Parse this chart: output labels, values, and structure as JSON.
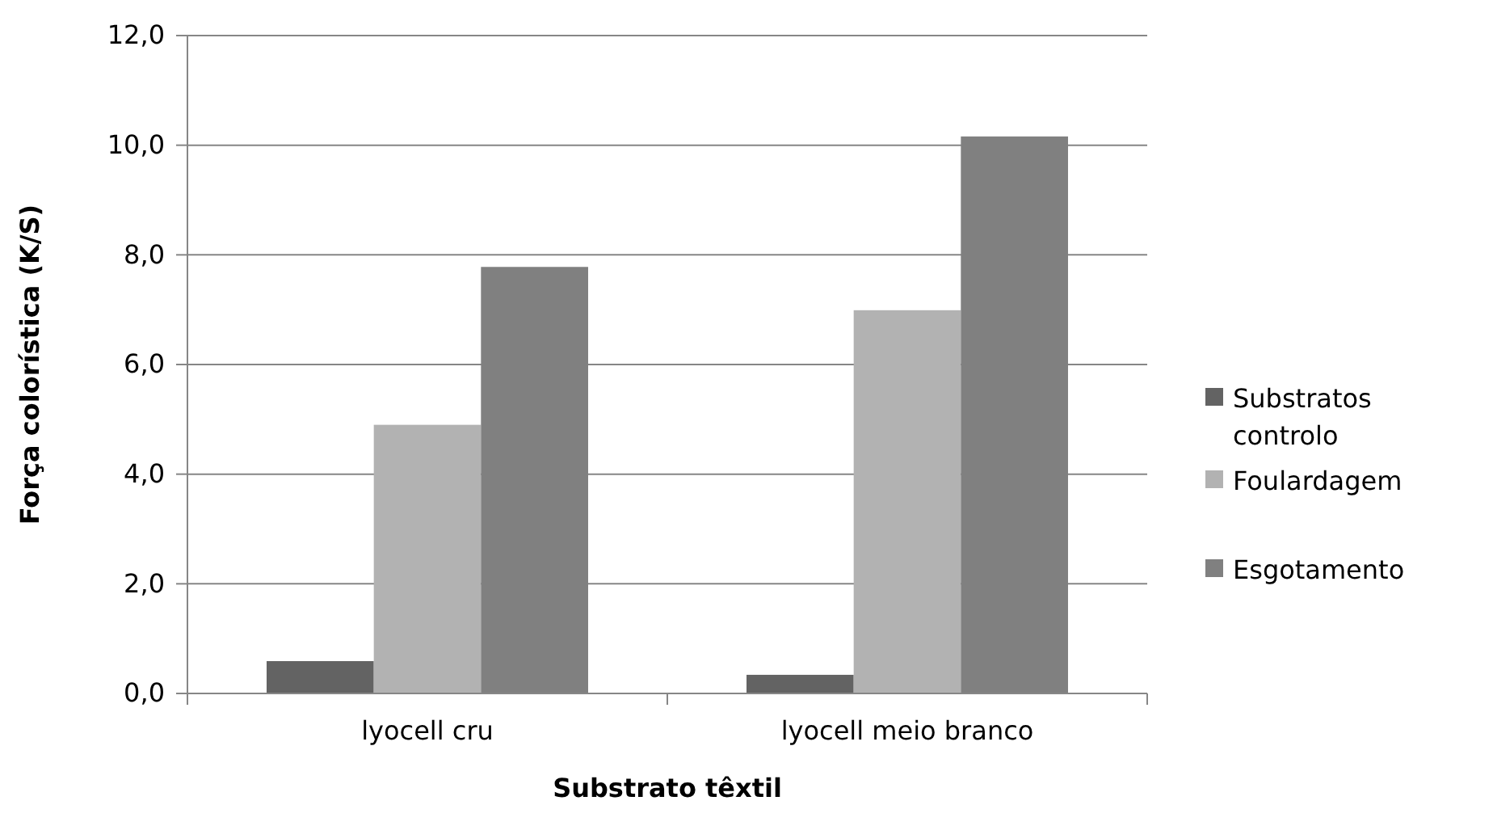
{
  "chart_data": {
    "type": "bar",
    "xlabel": "Substrato têxtil",
    "ylabel": "Força colorística (K/S)",
    "categories": [
      "lyocell cru",
      "lyocell meio branco"
    ],
    "series": [
      {
        "name": "Substratos controlo",
        "color": "#636363",
        "values": [
          0.59,
          0.34
        ]
      },
      {
        "name": "Foulardagem",
        "color": "#b2b2b2",
        "values": [
          4.9,
          6.99
        ]
      },
      {
        "name": "Esgotamento",
        "color": "#808080",
        "values": [
          7.78,
          10.16
        ]
      }
    ],
    "ylim": [
      0,
      12
    ],
    "yticks": [
      {
        "value": 0,
        "label": "0,0"
      },
      {
        "value": 2,
        "label": "2,0"
      },
      {
        "value": 4,
        "label": "4,0"
      },
      {
        "value": 6,
        "label": "6,0"
      },
      {
        "value": 8,
        "label": "8,0"
      },
      {
        "value": 10,
        "label": "10,0"
      },
      {
        "value": 12,
        "label": "12,0"
      }
    ],
    "grid": "y",
    "legend": "right"
  }
}
